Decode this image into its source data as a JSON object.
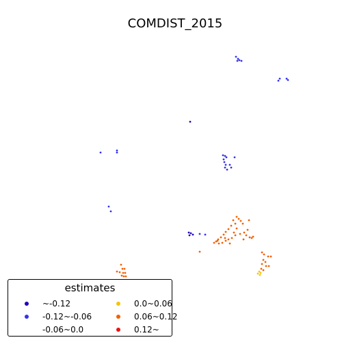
{
  "map": {
    "title": "COMDIST_2015"
  },
  "legend": {
    "title": "estimates",
    "items": [
      {
        "label": "~-0.12",
        "color": "#2200bb"
      },
      {
        "label": "-0.12~-0.06",
        "color": "#3333ee"
      },
      {
        "label": "-0.06~0.0",
        "color": "#ffffff"
      },
      {
        "label": "0.0~0.06",
        "color": "#f5c400"
      },
      {
        "label": "0.06~0.12",
        "color": "#f26000"
      },
      {
        "label": "0.12~",
        "color": "#ee1111"
      }
    ]
  }
}
